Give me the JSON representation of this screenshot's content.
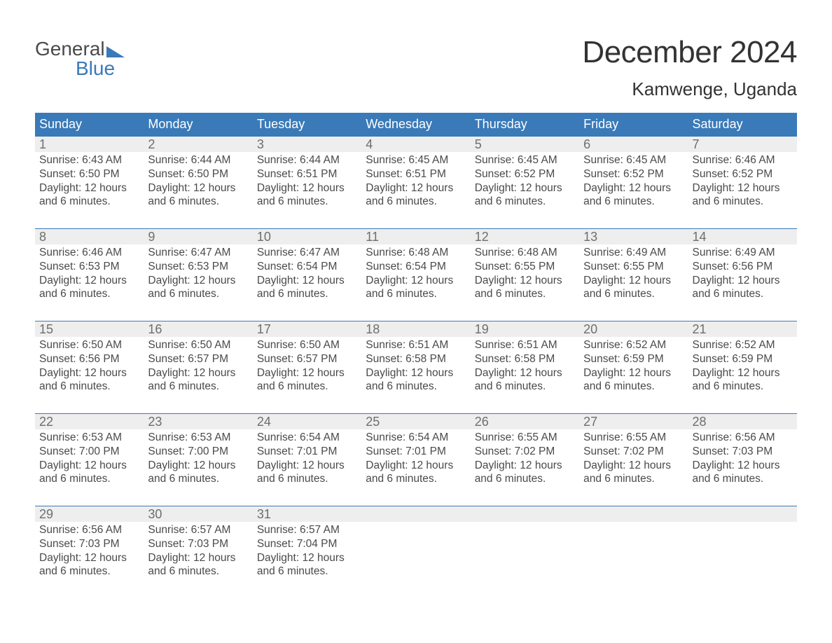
{
  "logo": {
    "lineA": "General",
    "lineB": "Blue"
  },
  "title": "December 2024",
  "location": "Kamwenge, Uganda",
  "colors": {
    "header_bg": "#3a7ab8",
    "header_fg": "#ffffff",
    "band_bg": "#eeeeee",
    "band_border": "#3a7ab8",
    "text": "#4a4a4a",
    "page_bg": "#ffffff"
  },
  "typography": {
    "title_fontsize": 44,
    "location_fontsize": 26,
    "weekday_fontsize": 18,
    "cell_fontsize": 15.5
  },
  "weekdays": [
    "Sunday",
    "Monday",
    "Tuesday",
    "Wednesday",
    "Thursday",
    "Friday",
    "Saturday"
  ],
  "labels": {
    "sunrise": "Sunrise:",
    "sunset": "Sunset:",
    "daylight": "Daylight:"
  },
  "daylight_common": "12 hours and 6 minutes.",
  "days": [
    {
      "n": 1,
      "sunrise": "6:43 AM",
      "sunset": "6:50 PM"
    },
    {
      "n": 2,
      "sunrise": "6:44 AM",
      "sunset": "6:50 PM"
    },
    {
      "n": 3,
      "sunrise": "6:44 AM",
      "sunset": "6:51 PM"
    },
    {
      "n": 4,
      "sunrise": "6:45 AM",
      "sunset": "6:51 PM"
    },
    {
      "n": 5,
      "sunrise": "6:45 AM",
      "sunset": "6:52 PM"
    },
    {
      "n": 6,
      "sunrise": "6:45 AM",
      "sunset": "6:52 PM"
    },
    {
      "n": 7,
      "sunrise": "6:46 AM",
      "sunset": "6:52 PM"
    },
    {
      "n": 8,
      "sunrise": "6:46 AM",
      "sunset": "6:53 PM"
    },
    {
      "n": 9,
      "sunrise": "6:47 AM",
      "sunset": "6:53 PM"
    },
    {
      "n": 10,
      "sunrise": "6:47 AM",
      "sunset": "6:54 PM"
    },
    {
      "n": 11,
      "sunrise": "6:48 AM",
      "sunset": "6:54 PM"
    },
    {
      "n": 12,
      "sunrise": "6:48 AM",
      "sunset": "6:55 PM"
    },
    {
      "n": 13,
      "sunrise": "6:49 AM",
      "sunset": "6:55 PM"
    },
    {
      "n": 14,
      "sunrise": "6:49 AM",
      "sunset": "6:56 PM"
    },
    {
      "n": 15,
      "sunrise": "6:50 AM",
      "sunset": "6:56 PM"
    },
    {
      "n": 16,
      "sunrise": "6:50 AM",
      "sunset": "6:57 PM"
    },
    {
      "n": 17,
      "sunrise": "6:50 AM",
      "sunset": "6:57 PM"
    },
    {
      "n": 18,
      "sunrise": "6:51 AM",
      "sunset": "6:58 PM"
    },
    {
      "n": 19,
      "sunrise": "6:51 AM",
      "sunset": "6:58 PM"
    },
    {
      "n": 20,
      "sunrise": "6:52 AM",
      "sunset": "6:59 PM"
    },
    {
      "n": 21,
      "sunrise": "6:52 AM",
      "sunset": "6:59 PM"
    },
    {
      "n": 22,
      "sunrise": "6:53 AM",
      "sunset": "7:00 PM"
    },
    {
      "n": 23,
      "sunrise": "6:53 AM",
      "sunset": "7:00 PM"
    },
    {
      "n": 24,
      "sunrise": "6:54 AM",
      "sunset": "7:01 PM"
    },
    {
      "n": 25,
      "sunrise": "6:54 AM",
      "sunset": "7:01 PM"
    },
    {
      "n": 26,
      "sunrise": "6:55 AM",
      "sunset": "7:02 PM"
    },
    {
      "n": 27,
      "sunrise": "6:55 AM",
      "sunset": "7:02 PM"
    },
    {
      "n": 28,
      "sunrise": "6:56 AM",
      "sunset": "7:03 PM"
    },
    {
      "n": 29,
      "sunrise": "6:56 AM",
      "sunset": "7:03 PM"
    },
    {
      "n": 30,
      "sunrise": "6:57 AM",
      "sunset": "7:03 PM"
    },
    {
      "n": 31,
      "sunrise": "6:57 AM",
      "sunset": "7:04 PM"
    }
  ],
  "layout": {
    "columns": 7,
    "start_weekday_index": 0
  }
}
